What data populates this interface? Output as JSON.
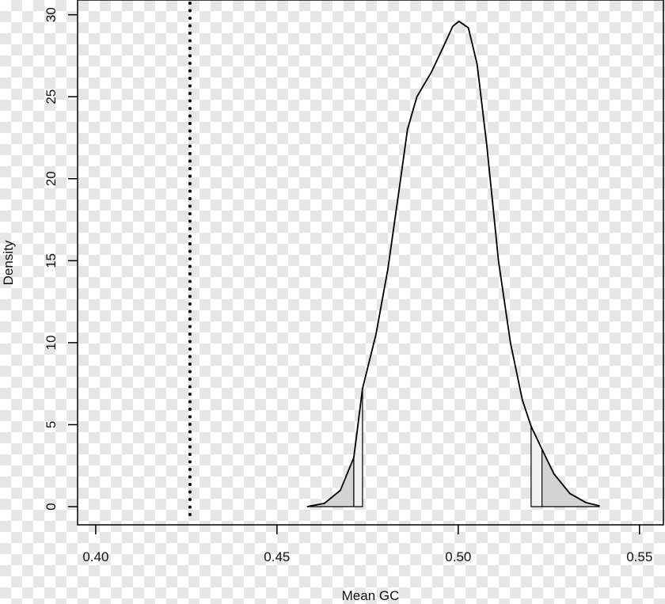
{
  "chart_data": {
    "type": "density",
    "xlabel": "Mean GC",
    "ylabel": "Density",
    "x": [
      0.4583,
      0.4631,
      0.4675,
      0.4712,
      0.4736,
      0.4773,
      0.4806,
      0.4838,
      0.486,
      0.4886,
      0.4926,
      0.4958,
      0.4985,
      0.5002,
      0.5028,
      0.5052,
      0.5079,
      0.5111,
      0.5144,
      0.5177,
      0.5201,
      0.5231,
      0.5264,
      0.5308,
      0.5352,
      0.5389
    ],
    "values": [
      0,
      0.2,
      1.0,
      3.0,
      7.2,
      10.5,
      14.5,
      19.5,
      23,
      25,
      26.5,
      28,
      29.3,
      29.6,
      29.2,
      27,
      22,
      15,
      10,
      6.5,
      4.9,
      3.5,
      2.0,
      0.8,
      0.25,
      0.05
    ],
    "color": "#000000",
    "shaded_regions": [
      {
        "from": 0.4583,
        "to": 0.4712,
        "color": "#d3d3d3"
      },
      {
        "from": 0.4712,
        "to": 0.4736,
        "color": "#f0f0f0"
      },
      {
        "from": 0.5201,
        "to": 0.5231,
        "color": "#f0f0f0"
      },
      {
        "from": 0.5231,
        "to": 0.5389,
        "color": "#d3d3d3"
      }
    ],
    "vline": 0.426,
    "xlim": [
      0.395,
      0.5566
    ],
    "ylim": [
      -1.11,
      30.9
    ],
    "xticks": [
      {
        "value": 0.4,
        "label": "0.40"
      },
      {
        "value": 0.45,
        "label": "0.45"
      },
      {
        "value": 0.5,
        "label": "0.50"
      },
      {
        "value": 0.55,
        "label": "0.55"
      }
    ],
    "yticks": [
      0,
      5,
      10,
      15,
      20,
      25,
      30
    ]
  }
}
